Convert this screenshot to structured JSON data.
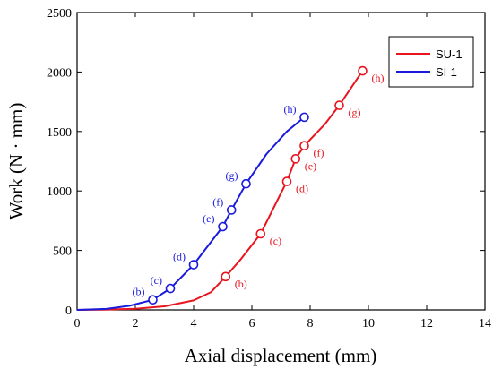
{
  "chart_data": {
    "type": "line",
    "xlabel": "Axial displacement (mm)",
    "ylabel": "Work (N · mm)",
    "xlim": [
      0,
      14
    ],
    "ylim": [
      0,
      2500
    ],
    "x_ticks": [
      0,
      2,
      4,
      6,
      8,
      10,
      12,
      14
    ],
    "y_ticks": [
      0,
      500,
      1000,
      1500,
      2000,
      2500
    ],
    "grid": false,
    "legend_position": "top-right",
    "series": [
      {
        "name": "SU-1",
        "color": "#e8141e",
        "curve": [
          [
            0,
            0
          ],
          [
            1,
            3
          ],
          [
            2,
            10
          ],
          [
            3,
            30
          ],
          [
            4,
            80
          ],
          [
            4.6,
            150
          ],
          [
            5.1,
            280
          ],
          [
            5.6,
            420
          ],
          [
            6.3,
            640
          ],
          [
            7.2,
            1080
          ],
          [
            7.5,
            1270
          ],
          [
            7.8,
            1380
          ],
          [
            8.5,
            1560
          ],
          [
            9,
            1720
          ],
          [
            9.8,
            2010
          ]
        ],
        "marked_points": [
          {
            "label": "(b)",
            "x": 5.1,
            "y": 280
          },
          {
            "label": "(c)",
            "x": 6.3,
            "y": 640
          },
          {
            "label": "(d)",
            "x": 7.2,
            "y": 1080
          },
          {
            "label": "(e)",
            "x": 7.5,
            "y": 1270
          },
          {
            "label": "(f)",
            "x": 7.8,
            "y": 1380
          },
          {
            "label": "(g)",
            "x": 9.0,
            "y": 1720
          },
          {
            "label": "(h)",
            "x": 9.8,
            "y": 2010
          }
        ]
      },
      {
        "name": "SI-1",
        "color": "#1a1adc",
        "curve": [
          [
            0,
            0
          ],
          [
            1,
            8
          ],
          [
            1.8,
            35
          ],
          [
            2.6,
            85
          ],
          [
            3.2,
            180
          ],
          [
            4,
            380
          ],
          [
            5,
            700
          ],
          [
            5.3,
            840
          ],
          [
            5.8,
            1060
          ],
          [
            6.5,
            1310
          ],
          [
            7.2,
            1500
          ],
          [
            7.8,
            1620
          ]
        ],
        "marked_points": [
          {
            "label": "(b)",
            "x": 2.6,
            "y": 85
          },
          {
            "label": "(c)",
            "x": 3.2,
            "y": 180
          },
          {
            "label": "(d)",
            "x": 4.0,
            "y": 380
          },
          {
            "label": "(e)",
            "x": 5.0,
            "y": 700
          },
          {
            "label": "(f)",
            "x": 5.3,
            "y": 840
          },
          {
            "label": "(g)",
            "x": 5.8,
            "y": 1060
          },
          {
            "label": "(h)",
            "x": 7.8,
            "y": 1620
          }
        ]
      }
    ]
  }
}
